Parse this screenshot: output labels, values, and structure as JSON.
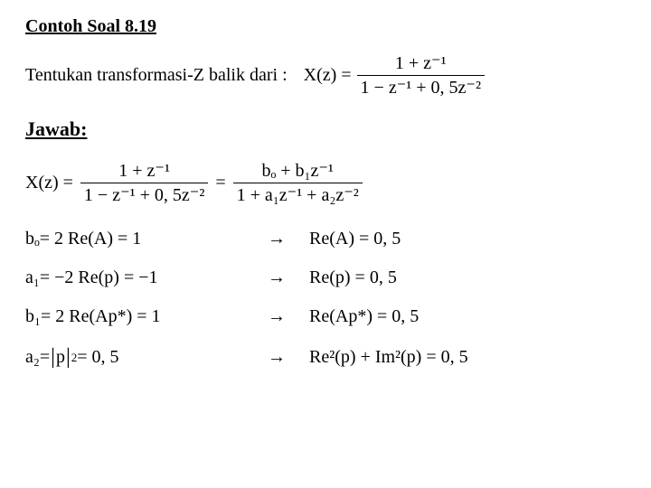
{
  "heading": "Contoh Soal 8.19",
  "prompt_text": "Tentukan transformasi-Z balik dari :",
  "xz_label": "X(z) =",
  "given_frac": {
    "num": "1 + z⁻¹",
    "den": "1 − z⁻¹ + 0, 5z⁻²"
  },
  "answer_heading": "Jawab:",
  "main_eq": {
    "lhs": "X(z) =",
    "frac1": {
      "num": "1 + z⁻¹",
      "den": "1 − z⁻¹ + 0, 5z⁻²"
    },
    "mid": "=",
    "frac2": {
      "num": "bₒ + b₁z⁻¹",
      "den": "1 + a₁z⁻¹ + a₂z⁻²"
    }
  },
  "rows": [
    {
      "left_var": "bₒ",
      "left_expr": " = 2 Re(A) = 1",
      "right": "Re(A) = 0, 5"
    },
    {
      "left_var": "a₁",
      "left_expr": " = −2 Re(p) = −1",
      "right": "Re(p) = 0, 5"
    },
    {
      "left_var": "b₁",
      "left_expr": " = 2 Re(Ap*) = 1",
      "right": "Re(Ap*) = 0, 5"
    }
  ],
  "last_row": {
    "left_var": "a₂",
    "left_eq": " = ",
    "abs_inner": "p",
    "abs_sup": "2",
    "left_tail": " = 0, 5",
    "right": "Re²(p) + Im²(p) = 0, 5"
  },
  "arrow": "→",
  "colors": {
    "text": "#000000",
    "bg": "#ffffff"
  },
  "fontsize_body": 20,
  "fontsize_heading": 20,
  "fontsize_answer": 22
}
